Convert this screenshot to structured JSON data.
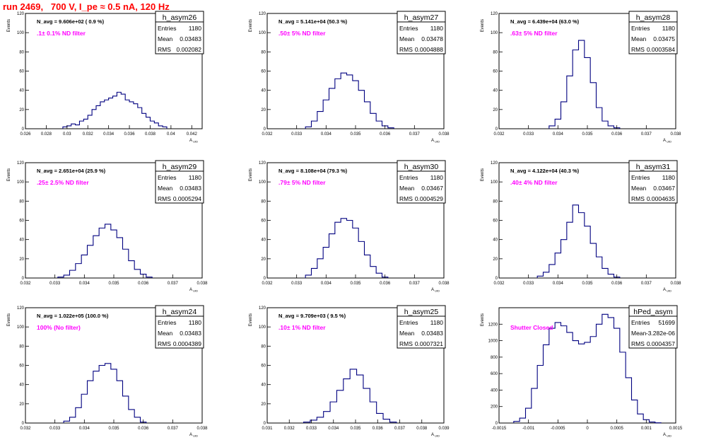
{
  "run_title": "run 2469,   700 V, I_pe ≈ 0.5 nA, 120 Hz",
  "chart_data": [
    {
      "type": "histogram",
      "name": "h_asym26",
      "stats": {
        "entries": "1180",
        "mean": "0.03483",
        "rms": "0.002082"
      },
      "note": "N_avg = 9.606e+02 ( 0.9 %)",
      "filter": ".1± 0.1% ND filter",
      "ylabel": "Events",
      "xlabel": "A_UID",
      "xlim": [
        0.026,
        0.043
      ],
      "ylim": [
        0,
        120
      ],
      "xticks": [
        0.026,
        0.028,
        0.03,
        0.032,
        0.034,
        0.036,
        0.038,
        0.04,
        0.042
      ],
      "xtick_labels": [
        "0.026",
        "0.028",
        "0.03",
        "0.032",
        "0.034",
        "0.036",
        "0.038",
        "0.04",
        "0.042"
      ],
      "yticks": [
        0,
        20,
        40,
        60,
        80,
        100,
        120
      ],
      "bins": {
        "x": [
          0.0298,
          0.0302,
          0.0306,
          0.031,
          0.0314,
          0.0318,
          0.0322,
          0.0326,
          0.033,
          0.0334,
          0.0338,
          0.0342,
          0.0346,
          0.035,
          0.0354,
          0.0358,
          0.0362,
          0.0366,
          0.037,
          0.0374,
          0.0378,
          0.0382,
          0.0386,
          0.039,
          0.0394
        ],
        "y": [
          2,
          3,
          5,
          4,
          8,
          10,
          14,
          20,
          24,
          28,
          30,
          32,
          34,
          38,
          36,
          30,
          28,
          26,
          22,
          16,
          12,
          8,
          6,
          3,
          2
        ]
      }
    },
    {
      "type": "histogram",
      "name": "h_asym27",
      "stats": {
        "entries": "1180",
        "mean": "0.03478",
        "rms": "0.0004888"
      },
      "note": "N_avg = 5.141e+04 (50.3 %)",
      "filter": ".50± 5% ND filter",
      "ylabel": "Events",
      "xlabel": "A_UID",
      "xlim": [
        0.032,
        0.038
      ],
      "ylim": [
        0,
        120
      ],
      "xticks": [
        0.032,
        0.033,
        0.034,
        0.035,
        0.036,
        0.037,
        0.038
      ],
      "xtick_labels": [
        "0.032",
        "0.033",
        "0.034",
        "0.035",
        "0.036",
        "0.037",
        "0.038"
      ],
      "yticks": [
        0,
        20,
        40,
        60,
        80,
        100,
        120
      ],
      "bins": {
        "x": [
          0.0334,
          0.0336,
          0.0338,
          0.034,
          0.0342,
          0.0344,
          0.0346,
          0.0348,
          0.035,
          0.0352,
          0.0354,
          0.0356,
          0.0358,
          0.036,
          0.0362
        ],
        "y": [
          2,
          8,
          18,
          30,
          42,
          52,
          58,
          56,
          50,
          40,
          28,
          16,
          8,
          3,
          1
        ]
      }
    },
    {
      "type": "histogram",
      "name": "h_asym28",
      "stats": {
        "entries": "1180",
        "mean": "0.03475",
        "rms": "0.0003584"
      },
      "note": "N_avg = 6.439e+04 (63.0 %)",
      "filter": ".63± 5% ND filter",
      "ylabel": "Events",
      "xlabel": "A_UID",
      "xlim": [
        0.032,
        0.038
      ],
      "ylim": [
        0,
        120
      ],
      "xticks": [
        0.032,
        0.033,
        0.034,
        0.035,
        0.036,
        0.037,
        0.038
      ],
      "xtick_labels": [
        "0.032",
        "0.033",
        "0.034",
        "0.035",
        "0.036",
        "0.037",
        "0.038"
      ],
      "yticks": [
        0,
        20,
        40,
        60,
        80,
        100,
        120
      ],
      "bins": {
        "x": [
          0.0338,
          0.034,
          0.0342,
          0.0344,
          0.0346,
          0.0348,
          0.035,
          0.0352,
          0.0354,
          0.0356,
          0.0358,
          0.036
        ],
        "y": [
          3,
          10,
          28,
          55,
          82,
          92,
          74,
          48,
          22,
          8,
          3,
          1
        ]
      }
    },
    {
      "type": "histogram",
      "name": "h_asym29",
      "stats": {
        "entries": "1180",
        "mean": "0.03483",
        "rms": "0.0005294"
      },
      "note": "N_avg = 2.651e+04 (25.9 %)",
      "filter": ".25± 2.5% ND filter",
      "ylabel": "Events",
      "xlabel": "A_UID",
      "xlim": [
        0.032,
        0.038
      ],
      "ylim": [
        0,
        120
      ],
      "xticks": [
        0.032,
        0.033,
        0.034,
        0.035,
        0.036,
        0.037,
        0.038
      ],
      "xtick_labels": [
        "0.032",
        "0.033",
        "0.034",
        "0.035",
        "0.036",
        "0.037",
        "0.038"
      ],
      "yticks": [
        0,
        20,
        40,
        60,
        80,
        100,
        120
      ],
      "bins": {
        "x": [
          0.0332,
          0.0334,
          0.0336,
          0.0338,
          0.034,
          0.0342,
          0.0344,
          0.0346,
          0.0348,
          0.035,
          0.0352,
          0.0354,
          0.0356,
          0.0358,
          0.036,
          0.0362
        ],
        "y": [
          1,
          3,
          8,
          15,
          24,
          34,
          44,
          52,
          56,
          50,
          42,
          30,
          18,
          9,
          4,
          1
        ]
      }
    },
    {
      "type": "histogram",
      "name": "h_asym30",
      "stats": {
        "entries": "1180",
        "mean": "0.03467",
        "rms": "0.0004529"
      },
      "note": "N_avg = 8.108e+04 (79.3 %)",
      "filter": ".79± 5% ND filter",
      "ylabel": "Events",
      "xlabel": "A_UID",
      "xlim": [
        0.032,
        0.038
      ],
      "ylim": [
        0,
        120
      ],
      "xticks": [
        0.032,
        0.033,
        0.034,
        0.035,
        0.036,
        0.037,
        0.038
      ],
      "xtick_labels": [
        "0.032",
        "0.033",
        "0.034",
        "0.035",
        "0.036",
        "0.037",
        "0.038"
      ],
      "yticks": [
        0,
        20,
        40,
        60,
        80,
        100,
        120
      ],
      "bins": {
        "x": [
          0.0334,
          0.0336,
          0.0338,
          0.034,
          0.0342,
          0.0344,
          0.0346,
          0.0348,
          0.035,
          0.0352,
          0.0354,
          0.0356,
          0.0358,
          0.036
        ],
        "y": [
          3,
          10,
          20,
          32,
          46,
          58,
          62,
          60,
          52,
          38,
          24,
          12,
          5,
          1
        ]
      }
    },
    {
      "type": "histogram",
      "name": "h_asym31",
      "stats": {
        "entries": "1180",
        "mean": "0.03467",
        "rms": "0.0004635"
      },
      "note": "N_avg = 4.122e+04 (40.3 %)",
      "filter": ".40± 4% ND filter",
      "ylabel": "Events",
      "xlabel": "A_UID",
      "xlim": [
        0.032,
        0.038
      ],
      "ylim": [
        0,
        120
      ],
      "xticks": [
        0.032,
        0.033,
        0.034,
        0.035,
        0.036,
        0.037,
        0.038
      ],
      "xtick_labels": [
        "0.032",
        "0.033",
        "0.034",
        "0.035",
        "0.036",
        "0.037",
        "0.038"
      ],
      "yticks": [
        0,
        20,
        40,
        60,
        80,
        100,
        120
      ],
      "bins": {
        "x": [
          0.0334,
          0.0336,
          0.0338,
          0.034,
          0.0342,
          0.0344,
          0.0346,
          0.0348,
          0.035,
          0.0352,
          0.0354,
          0.0356,
          0.0358,
          0.036
        ],
        "y": [
          2,
          6,
          14,
          26,
          40,
          58,
          76,
          68,
          54,
          36,
          22,
          10,
          4,
          1
        ]
      }
    },
    {
      "type": "histogram",
      "name": "h_asym24",
      "stats": {
        "entries": "1180",
        "mean": "0.03483",
        "rms": "0.0004389"
      },
      "note": "N_avg = 1.022e+05 (100.0 %)",
      "filter": "100% (No filter)",
      "ylabel": "Events",
      "xlabel": "A_UID",
      "xlim": [
        0.032,
        0.038
      ],
      "ylim": [
        0,
        120
      ],
      "xticks": [
        0.032,
        0.033,
        0.034,
        0.035,
        0.036,
        0.037,
        0.038
      ],
      "xtick_labels": [
        "0.032",
        "0.033",
        "0.034",
        "0.035",
        "0.036",
        "0.037",
        "0.038"
      ],
      "yticks": [
        0,
        20,
        40,
        60,
        80,
        100,
        120
      ],
      "bins": {
        "x": [
          0.0334,
          0.0336,
          0.0338,
          0.034,
          0.0342,
          0.0344,
          0.0346,
          0.0348,
          0.035,
          0.0352,
          0.0354,
          0.0356,
          0.0358,
          0.036
        ],
        "y": [
          2,
          6,
          16,
          30,
          44,
          54,
          60,
          62,
          56,
          44,
          28,
          14,
          6,
          1
        ]
      }
    },
    {
      "type": "histogram",
      "name": "h_asym25",
      "stats": {
        "entries": "1180",
        "mean": "0.03483",
        "rms": "0.0007321"
      },
      "note": "N_avg = 9.709e+03 ( 9.5 %)",
      "filter": ".10± 1% ND filter",
      "ylabel": "Events",
      "xlabel": "A_UID",
      "xlim": [
        0.031,
        0.039
      ],
      "ylim": [
        0,
        120
      ],
      "xticks": [
        0.031,
        0.032,
        0.033,
        0.034,
        0.035,
        0.036,
        0.037,
        0.038,
        0.039
      ],
      "xtick_labels": [
        "0.031",
        "0.032",
        "0.033",
        "0.034",
        "0.035",
        "0.036",
        "0.037",
        "0.038",
        "0.039"
      ],
      "yticks": [
        0,
        20,
        40,
        60,
        80,
        100,
        120
      ],
      "bins": {
        "x": [
          0.0328,
          0.0331,
          0.0334,
          0.0337,
          0.034,
          0.0343,
          0.0346,
          0.0349,
          0.0352,
          0.0355,
          0.0358,
          0.0361,
          0.0364,
          0.0367
        ],
        "y": [
          1,
          3,
          6,
          12,
          22,
          34,
          46,
          56,
          50,
          36,
          22,
          10,
          4,
          1
        ]
      }
    },
    {
      "type": "histogram",
      "name": "hPed_asym",
      "stats": {
        "entries": "51699",
        "mean": "-3.282e-06",
        "rms": "0.0004357"
      },
      "note": "",
      "filter": "Shutter Closed",
      "ylabel": "Events",
      "xlabel": "A_UID",
      "xlim": [
        -0.0015,
        0.0015
      ],
      "ylim": [
        0,
        1400
      ],
      "xticks": [
        -0.0015,
        -0.001,
        -0.0005,
        0,
        0.0005,
        0.001,
        0.0015
      ],
      "xtick_labels": [
        "-0.0015",
        "-0.001",
        "-0.0005",
        "0",
        "0.0005",
        "0.001",
        "0.0015"
      ],
      "yticks": [
        0,
        200,
        400,
        600,
        800,
        1000,
        1200
      ],
      "bins": {
        "x": [
          -0.0012,
          -0.0011,
          -0.001,
          -0.0009,
          -0.0008,
          -0.0007,
          -0.0006,
          -0.0005,
          -0.0004,
          -0.0003,
          -0.0002,
          -0.0001,
          0,
          0.0001,
          0.0002,
          0.0003,
          0.0004,
          0.0005,
          0.0006,
          0.0007,
          0.0008,
          0.0009,
          0.001,
          0.0011,
          0.0012
        ],
        "y": [
          20,
          60,
          180,
          420,
          700,
          950,
          1150,
          1220,
          1180,
          1100,
          1000,
          960,
          980,
          1050,
          1200,
          1320,
          1280,
          1150,
          860,
          550,
          280,
          110,
          40,
          12,
          3
        ]
      }
    }
  ]
}
